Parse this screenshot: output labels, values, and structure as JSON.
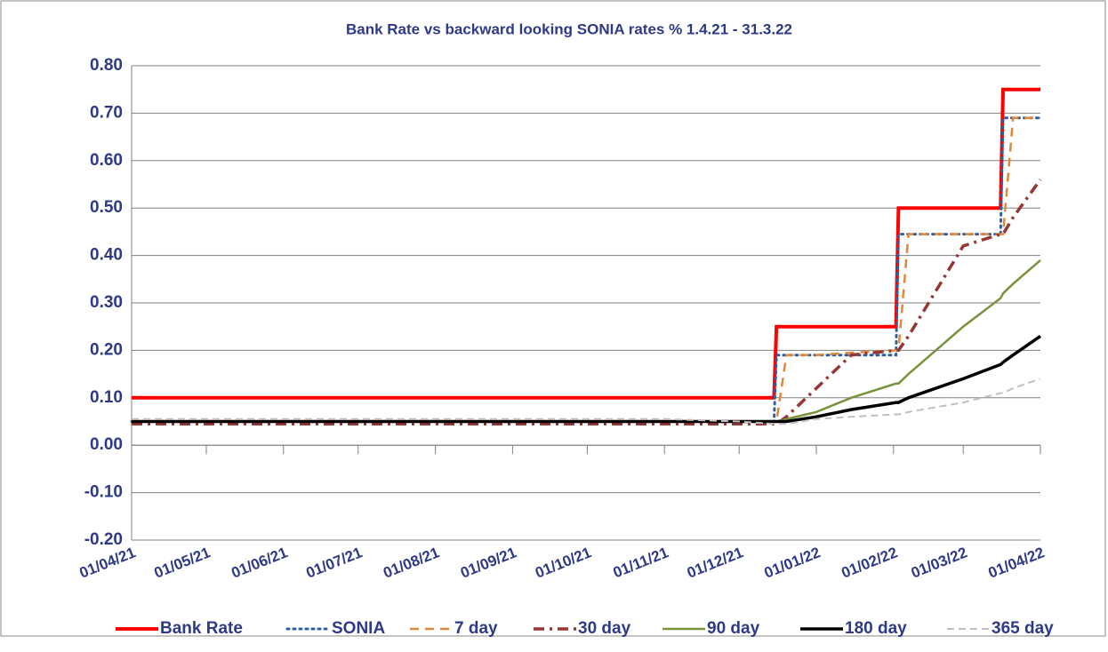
{
  "chart_data": {
    "type": "line",
    "title": "Bank Rate vs backward looking SONIA rates % 1.4.21 - 31.3.22",
    "x": [
      "01/04/21",
      "01/05/21",
      "01/06/21",
      "01/07/21",
      "01/08/21",
      "01/09/21",
      "01/10/21",
      "01/11/21",
      "01/12/21",
      "15/12/21",
      "16/12/21",
      "20/12/21",
      "01/01/22",
      "15/01/22",
      "02/02/22",
      "03/02/22",
      "07/02/22",
      "01/03/22",
      "16/03/22",
      "17/03/22",
      "21/03/22",
      "01/04/22"
    ],
    "xlim": [
      "01/04/21",
      "01/04/22"
    ],
    "xticks": [
      "01/04/21",
      "01/05/21",
      "01/06/21",
      "01/07/21",
      "01/08/21",
      "01/09/21",
      "01/10/21",
      "01/11/21",
      "01/12/21",
      "01/01/22",
      "01/02/22",
      "01/03/22",
      "01/04/22"
    ],
    "ylim": [
      -0.2,
      0.8
    ],
    "yticks": [
      {
        "value": -0.2,
        "label": "-0.20"
      },
      {
        "value": -0.1,
        "label": "-0.10"
      },
      {
        "value": 0,
        "label": "0.00"
      },
      {
        "value": 0.1,
        "label": "0.10"
      },
      {
        "value": 0.2,
        "label": "0.20"
      },
      {
        "value": 0.3,
        "label": "0.30"
      },
      {
        "value": 0.4,
        "label": "0.40"
      },
      {
        "value": 0.5,
        "label": "0.50"
      },
      {
        "value": 0.6,
        "label": "0.60"
      },
      {
        "value": 0.7,
        "label": "0.70"
      },
      {
        "value": 0.8,
        "label": "0.80"
      }
    ],
    "grid": true,
    "legend": "bottom",
    "series": [
      {
        "name": "Bank Rate",
        "color": "#ff0000",
        "values": [
          0.1,
          0.1,
          0.1,
          0.1,
          0.1,
          0.1,
          0.1,
          0.1,
          0.1,
          0.1,
          0.25,
          0.25,
          0.25,
          0.25,
          0.25,
          0.5,
          0.5,
          0.5,
          0.5,
          0.75,
          0.75,
          0.75
        ]
      },
      {
        "name": "SONIA",
        "color": "#2e5fa0",
        "values": [
          0.05,
          0.05,
          0.05,
          0.05,
          0.05,
          0.05,
          0.05,
          0.05,
          0.05,
          0.05,
          0.19,
          0.19,
          0.19,
          0.19,
          0.19,
          0.445,
          0.445,
          0.445,
          0.445,
          0.69,
          0.69,
          0.69
        ]
      },
      {
        "name": "7 day",
        "color": "#e0883a",
        "values": [
          0.05,
          0.05,
          0.05,
          0.05,
          0.05,
          0.05,
          0.05,
          0.05,
          0.05,
          0.05,
          0.05,
          0.19,
          0.19,
          0.195,
          0.2,
          0.2,
          0.445,
          0.445,
          0.445,
          0.445,
          0.69,
          0.69
        ]
      },
      {
        "name": "30 day",
        "color": "#953735",
        "values": [
          0.045,
          0.045,
          0.045,
          0.045,
          0.045,
          0.045,
          0.045,
          0.045,
          0.045,
          0.045,
          0.045,
          0.06,
          0.12,
          0.19,
          0.2,
          0.2,
          0.23,
          0.42,
          0.445,
          0.445,
          0.48,
          0.56
        ]
      },
      {
        "name": "90 day",
        "color": "#77933c",
        "values": [
          0.05,
          0.05,
          0.05,
          0.05,
          0.05,
          0.05,
          0.05,
          0.05,
          0.05,
          0.05,
          0.05,
          0.055,
          0.07,
          0.1,
          0.13,
          0.13,
          0.15,
          0.25,
          0.31,
          0.32,
          0.34,
          0.39
        ]
      },
      {
        "name": "180 day",
        "color": "#000000",
        "values": [
          0.05,
          0.05,
          0.05,
          0.05,
          0.05,
          0.05,
          0.05,
          0.05,
          0.05,
          0.05,
          0.05,
          0.05,
          0.06,
          0.075,
          0.09,
          0.09,
          0.1,
          0.14,
          0.17,
          0.175,
          0.19,
          0.23
        ]
      },
      {
        "name": "365 day",
        "color": "#c0c0c0",
        "values": [
          0.055,
          0.055,
          0.055,
          0.055,
          0.055,
          0.055,
          0.055,
          0.055,
          0.05,
          0.045,
          0.045,
          0.045,
          0.055,
          0.06,
          0.065,
          0.065,
          0.07,
          0.09,
          0.11,
          0.11,
          0.12,
          0.14
        ]
      }
    ]
  }
}
